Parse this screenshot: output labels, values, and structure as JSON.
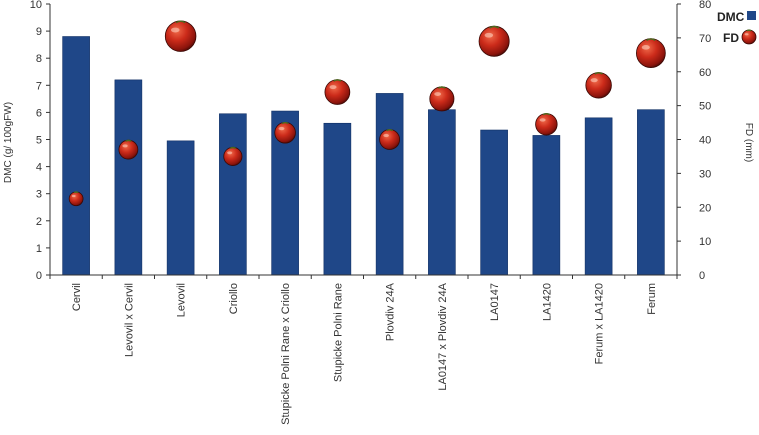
{
  "chart_data": {
    "type": "bar",
    "categories": [
      "Cervil",
      "Levovil x Cervil",
      "Levovil",
      "Criollo",
      "Stupicke Polni Rane x Criollo",
      "Stupicke Polni Rane",
      "Plovdiv 24A",
      "LA0147 x Plovdiv 24A",
      "LA0147",
      "LA1420",
      "Ferum x LA1420",
      "Ferum"
    ],
    "series": [
      {
        "name": "DMC",
        "axis": "left",
        "kind": "bar",
        "color": "#1f4788",
        "values": [
          8.8,
          7.2,
          4.95,
          5.95,
          6.05,
          5.6,
          6.7,
          6.1,
          5.35,
          5.15,
          5.8,
          6.1
        ]
      },
      {
        "name": "FD",
        "axis": "right",
        "kind": "marker",
        "color": "#b52217",
        "values": [
          22.5,
          37,
          70.5,
          35,
          42,
          54,
          40,
          52,
          69,
          44.5,
          56,
          65.5
        ]
      }
    ],
    "ylabel": "DMC (g/ 100gFW)",
    "y2label": "FD (mm)",
    "ylim": [
      0,
      10
    ],
    "y2lim": [
      0,
      80
    ],
    "yticks": [
      0,
      1,
      2,
      3,
      4,
      5,
      6,
      7,
      8,
      9,
      10
    ],
    "y2ticks": [
      0,
      10,
      20,
      30,
      40,
      50,
      60,
      70,
      80
    ],
    "legend_position": "top-right",
    "grid": false
  }
}
